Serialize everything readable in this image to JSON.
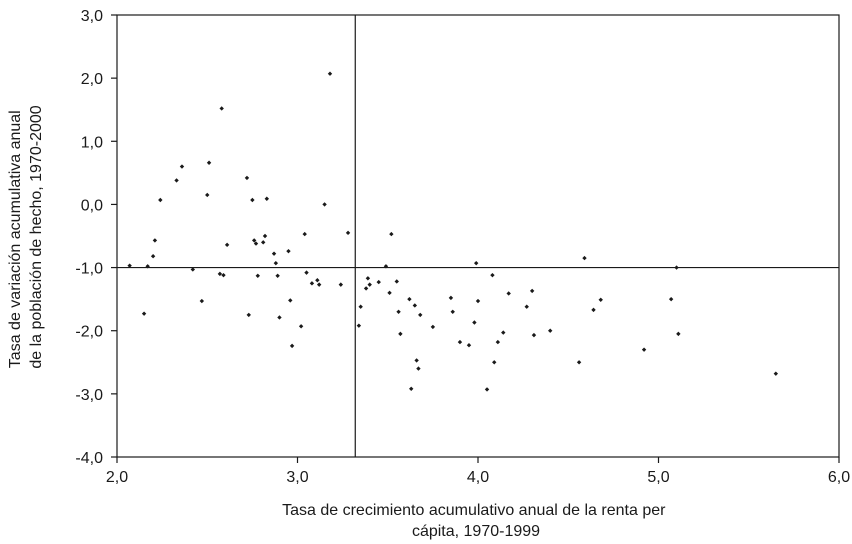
{
  "chart_data": {
    "type": "scatter",
    "title": "",
    "xlabel_lines": [
      "Tasa de crecimiento acumulativo anual de la renta per",
      "cápita, 1970-1999"
    ],
    "ylabel_lines": [
      "Tasa de variación acumulativa anual",
      "de la población de hecho, 1970-2000"
    ],
    "xlim": [
      2.0,
      6.0
    ],
    "ylim": [
      -4.0,
      3.0
    ],
    "x_ticks": [
      2.0,
      3.0,
      4.0,
      5.0,
      6.0
    ],
    "x_tick_labels": [
      "2,0",
      "3,0",
      "4,0",
      "5,0",
      "6,0"
    ],
    "y_ticks": [
      -4.0,
      -3.0,
      -2.0,
      -1.0,
      0.0,
      1.0,
      2.0,
      3.0
    ],
    "y_tick_labels": [
      "-4,0",
      "-3,0",
      "-2,0",
      "-1,0",
      "0,0",
      "1,0",
      "2,0",
      "3,0"
    ],
    "reference_lines": {
      "x": 3.32,
      "y": -1.0
    },
    "grid": false,
    "legend": "none",
    "marker_color": "#1a1a1a",
    "points": [
      [
        2.07,
        -0.97
      ],
      [
        2.15,
        -1.73
      ],
      [
        2.17,
        -0.98
      ],
      [
        2.2,
        -0.82
      ],
      [
        2.21,
        -0.57
      ],
      [
        2.24,
        0.07
      ],
      [
        2.33,
        0.38
      ],
      [
        2.36,
        0.6
      ],
      [
        2.42,
        -1.03
      ],
      [
        2.47,
        -1.53
      ],
      [
        2.5,
        0.15
      ],
      [
        2.51,
        0.66
      ],
      [
        2.57,
        -1.1
      ],
      [
        2.58,
        1.52
      ],
      [
        2.59,
        -1.12
      ],
      [
        2.61,
        -0.64
      ],
      [
        2.72,
        0.42
      ],
      [
        2.73,
        -1.75
      ],
      [
        2.75,
        0.07
      ],
      [
        2.76,
        -0.57
      ],
      [
        2.77,
        -0.62
      ],
      [
        2.78,
        -1.13
      ],
      [
        2.81,
        -0.6
      ],
      [
        2.82,
        -0.5
      ],
      [
        2.83,
        0.09
      ],
      [
        2.87,
        -0.78
      ],
      [
        2.88,
        -0.93
      ],
      [
        2.89,
        -1.13
      ],
      [
        2.9,
        -1.79
      ],
      [
        2.95,
        -0.74
      ],
      [
        2.96,
        -1.52
      ],
      [
        2.97,
        -2.24
      ],
      [
        3.02,
        -1.93
      ],
      [
        3.04,
        -0.47
      ],
      [
        3.05,
        -1.08
      ],
      [
        3.08,
        -1.25
      ],
      [
        3.11,
        -1.2
      ],
      [
        3.12,
        -1.27
      ],
      [
        3.15,
        0.0
      ],
      [
        3.18,
        2.07
      ],
      [
        3.24,
        -1.27
      ],
      [
        3.28,
        -0.45
      ],
      [
        3.34,
        -1.92
      ],
      [
        3.35,
        -1.62
      ],
      [
        3.38,
        -1.33
      ],
      [
        3.39,
        -1.17
      ],
      [
        3.4,
        -1.27
      ],
      [
        3.45,
        -1.23
      ],
      [
        3.49,
        -0.98
      ],
      [
        3.51,
        -1.4
      ],
      [
        3.52,
        -0.47
      ],
      [
        3.55,
        -1.22
      ],
      [
        3.56,
        -1.7
      ],
      [
        3.57,
        -2.05
      ],
      [
        3.62,
        -1.5
      ],
      [
        3.63,
        -2.92
      ],
      [
        3.65,
        -1.6
      ],
      [
        3.66,
        -2.47
      ],
      [
        3.67,
        -2.6
      ],
      [
        3.68,
        -1.75
      ],
      [
        3.75,
        -1.94
      ],
      [
        3.85,
        -1.48
      ],
      [
        3.86,
        -1.7
      ],
      [
        3.9,
        -2.18
      ],
      [
        3.95,
        -2.23
      ],
      [
        3.98,
        -1.87
      ],
      [
        3.99,
        -0.93
      ],
      [
        4.0,
        -1.53
      ],
      [
        4.05,
        -2.93
      ],
      [
        4.08,
        -1.12
      ],
      [
        4.09,
        -2.5
      ],
      [
        4.11,
        -2.18
      ],
      [
        4.14,
        -2.03
      ],
      [
        4.17,
        -1.41
      ],
      [
        4.27,
        -1.62
      ],
      [
        4.3,
        -1.37
      ],
      [
        4.31,
        -2.07
      ],
      [
        4.4,
        -2.0
      ],
      [
        4.56,
        -2.5
      ],
      [
        4.59,
        -0.85
      ],
      [
        4.64,
        -1.67
      ],
      [
        4.68,
        -1.51
      ],
      [
        4.92,
        -2.3
      ],
      [
        5.07,
        -1.5
      ],
      [
        5.1,
        -1.0
      ],
      [
        5.11,
        -2.05
      ],
      [
        5.65,
        -2.68
      ]
    ]
  }
}
